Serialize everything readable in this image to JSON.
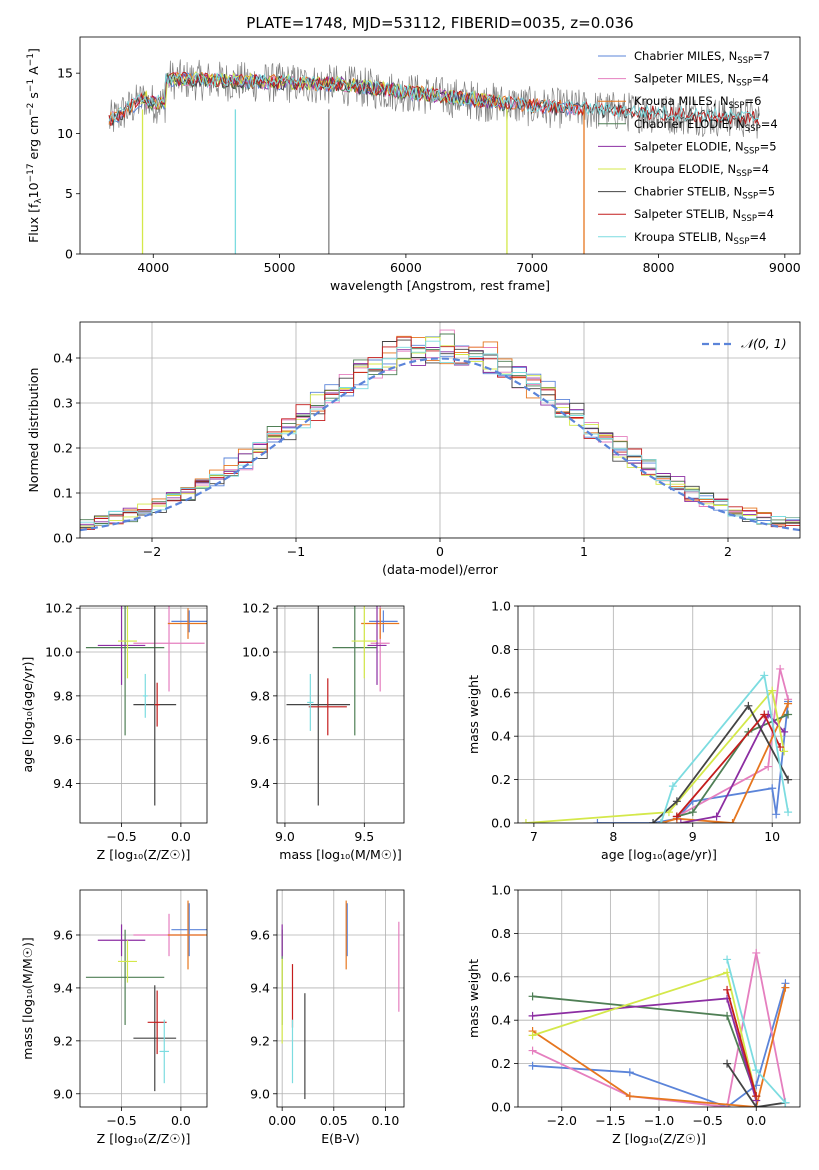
{
  "figure_title": "PLATE=1748, MJD=53112, FIBERID=0035, z=0.036",
  "colors": {
    "chabrier_miles": "#5b84d9",
    "salpeter_miles": "#e57fbf",
    "kroupa_miles": "#e6761f",
    "chabrier_elodie": "#4f7f55",
    "salpeter_elodie": "#8c2ea2",
    "kroupa_elodie": "#d4e84a",
    "chabrier_stelib": "#444444",
    "salpeter_stelib": "#c41d1d",
    "kroupa_stelib": "#7cdce0",
    "data_gray": "#808080",
    "gaussian": "#5b84d9"
  },
  "legend_entries": [
    "Chabrier MILES, N_SSP=7",
    "Salpeter MILES, N_SSP=4",
    "Kroupa MILES, N_SSP=6",
    "Chabrier ELODIE, N_SSP=4",
    "Salpeter ELODIE, N_SSP=5",
    "Kroupa ELODIE, N_SSP=4",
    "Chabrier STELIB, N_SSP=5",
    "Salpeter STELIB, N_SSP=4",
    "Kroupa STELIB, N_SSP=4"
  ],
  "chart_data": [
    {
      "id": "spectrum",
      "type": "line",
      "title": "PLATE=1748, MJD=53112, FIBERID=0035, z=0.036",
      "xlabel": "wavelength [Angstrom, rest frame]",
      "ylabel": "Flux [f_λ 10^-17 erg cm^-2 s^-1 A^-1]",
      "xlim": [
        3420,
        9120
      ],
      "ylim": [
        0,
        18
      ],
      "xticks": [
        4000,
        5000,
        6000,
        7000,
        8000,
        9000
      ],
      "yticks": [
        0,
        5,
        10,
        15
      ],
      "grid": false,
      "legend_position": "top-right",
      "series": [
        {
          "name": "Chabrier MILES, N_SSP=7",
          "x": [
            3650,
            7400
          ],
          "y_approx": "model spectrum ~11-15"
        },
        {
          "name": "Salpeter MILES, N_SSP=4",
          "x": [
            3650,
            7400
          ]
        },
        {
          "name": "Kroupa MILES, N_SSP=6",
          "x": [
            3650,
            7420
          ]
        },
        {
          "name": "Chabrier ELODIE, N_SSP=4",
          "x": [
            3900,
            6800
          ]
        },
        {
          "name": "Salpeter ELODIE, N_SSP=5",
          "x": [
            3900,
            6800
          ]
        },
        {
          "name": "Kroupa ELODIE, N_SSP=4",
          "x": [
            3900,
            6800
          ]
        },
        {
          "name": "Chabrier STELIB, N_SSP=5",
          "x": [
            3650,
            8800
          ]
        },
        {
          "name": "Salpeter STELIB, N_SSP=4",
          "x": [
            3650,
            8800
          ]
        },
        {
          "name": "Kroupa STELIB, N_SSP=4",
          "x": [
            3650,
            8800
          ]
        }
      ]
    },
    {
      "id": "residuals",
      "type": "line",
      "xlabel": "(data-model)/error",
      "ylabel": "Normed distribution",
      "xlim": [
        -2.5,
        2.5
      ],
      "ylim": [
        0,
        0.48
      ],
      "xticks": [
        -2,
        -1,
        0,
        1,
        2
      ],
      "yticks": [
        0.0,
        0.1,
        0.2,
        0.3,
        0.4
      ],
      "grid": true,
      "legend_position": "top-right",
      "legend": "N(0,1)",
      "gaussian": {
        "mean": 0,
        "sigma": 1
      },
      "bin_width": 0.1
    },
    {
      "id": "z_age",
      "type": "scatter",
      "xlabel": "Z [log10(Z/Z_sun)]",
      "ylabel": "age [log10(age/yr)]",
      "xlim": [
        -0.85,
        0.22
      ],
      "ylim": [
        9.22,
        10.21
      ],
      "xticks": [
        -0.5,
        0.0
      ],
      "yticks": [
        9.4,
        9.6,
        9.8,
        10.0,
        10.2
      ],
      "grid": true,
      "points": [
        {
          "series": "Chabrier MILES",
          "x": 0.07,
          "y": 10.14,
          "xerr": 0.15,
          "yerr": 0.05
        },
        {
          "series": "Salpeter MILES",
          "x": -0.1,
          "y": 10.04,
          "xerr": 0.3,
          "yerr": 0.22
        },
        {
          "series": "Kroupa MILES",
          "x": 0.06,
          "y": 10.13,
          "xerr": 0.17,
          "yerr": 0.07
        },
        {
          "series": "Chabrier ELODIE",
          "x": -0.47,
          "y": 10.02,
          "xerr": 0.33,
          "yerr": 0.4
        },
        {
          "series": "Salpeter ELODIE",
          "x": -0.5,
          "y": 10.03,
          "xerr": 0.2,
          "yerr": 0.18
        },
        {
          "series": "Kroupa ELODIE",
          "x": -0.45,
          "y": 10.05,
          "xerr": 0.08,
          "yerr": 0.17
        },
        {
          "series": "Chabrier STELIB",
          "x": -0.22,
          "y": 9.76,
          "xerr": 0.18,
          "yerr": 0.46
        },
        {
          "series": "Salpeter STELIB",
          "x": -0.2,
          "y": 9.76,
          "xerr": 0.02,
          "yerr": 0.1
        },
        {
          "series": "Kroupa STELIB",
          "x": -0.3,
          "y": 9.8,
          "xerr": 0.02,
          "yerr": 0.1
        }
      ]
    },
    {
      "id": "mass_age",
      "type": "scatter",
      "xlabel": "mass [log10(M/M_sun)]",
      "ylabel": "",
      "xlim": [
        8.95,
        9.75
      ],
      "ylim": [
        9.22,
        10.21
      ],
      "xticks": [
        9.0,
        9.5
      ],
      "yticks": [
        9.4,
        9.6,
        9.8,
        10.0,
        10.2
      ],
      "grid": true,
      "points": [
        {
          "series": "Chabrier MILES",
          "x": 9.62,
          "y": 10.14,
          "xerr": 0.09,
          "yerr": 0.05
        },
        {
          "series": "Salpeter MILES",
          "x": 9.6,
          "y": 10.04,
          "xerr": 0.06,
          "yerr": 0.22
        },
        {
          "series": "Kroupa MILES",
          "x": 9.6,
          "y": 10.13,
          "xerr": 0.12,
          "yerr": 0.07
        },
        {
          "series": "Chabrier ELODIE",
          "x": 9.44,
          "y": 10.02,
          "xerr": 0.14,
          "yerr": 0.4
        },
        {
          "series": "Salpeter ELODIE",
          "x": 9.58,
          "y": 10.03,
          "xerr": 0.06,
          "yerr": 0.18
        },
        {
          "series": "Kroupa ELODIE",
          "x": 9.5,
          "y": 10.05,
          "xerr": 0.08,
          "yerr": 0.17
        },
        {
          "series": "Chabrier STELIB",
          "x": 9.21,
          "y": 9.76,
          "xerr": 0.2,
          "yerr": 0.46
        },
        {
          "series": "Salpeter STELIB",
          "x": 9.27,
          "y": 9.75,
          "xerr": 0.12,
          "yerr": 0.13
        },
        {
          "series": "Kroupa STELIB",
          "x": 9.16,
          "y": 9.77,
          "xerr": 0.02,
          "yerr": 0.13
        }
      ]
    },
    {
      "id": "age_weight",
      "type": "line",
      "xlabel": "age [log10(age/yr)]",
      "ylabel": "mass weight",
      "xlim": [
        6.8,
        10.35
      ],
      "ylim": [
        0,
        1.0
      ],
      "xticks": [
        7,
        8,
        9,
        10
      ],
      "yticks": [
        0.0,
        0.2,
        0.4,
        0.6,
        0.8,
        1.0
      ],
      "grid": true,
      "series": [
        {
          "name": "Chabrier MILES",
          "x": [
            7.8,
            8.5,
            8.8,
            9.0,
            10.0,
            10.05,
            10.2
          ],
          "y": [
            0.0,
            0.0,
            0.02,
            0.1,
            0.16,
            0.04,
            0.56
          ]
        },
        {
          "name": "Salpeter MILES",
          "x": [
            8.8,
            9.95,
            10.1,
            10.2
          ],
          "y": [
            0.03,
            0.26,
            0.71,
            0.57
          ]
        },
        {
          "name": "Kroupa MILES",
          "x": [
            8.6,
            8.8,
            9.5,
            10.2
          ],
          "y": [
            0.0,
            0.02,
            0.0,
            0.55
          ]
        },
        {
          "name": "Chabrier ELODIE",
          "x": [
            8.8,
            9.0,
            9.7,
            10.2
          ],
          "y": [
            0.03,
            0.05,
            0.42,
            0.5
          ]
        },
        {
          "name": "Salpeter ELODIE",
          "x": [
            8.85,
            9.3,
            9.95,
            10.15
          ],
          "y": [
            0.0,
            0.03,
            0.5,
            0.42
          ]
        },
        {
          "name": "Kroupa ELODIE",
          "x": [
            6.9,
            8.7,
            10.0,
            10.15
          ],
          "y": [
            0.0,
            0.05,
            0.61,
            0.33
          ]
        },
        {
          "name": "Chabrier STELIB",
          "x": [
            8.5,
            8.8,
            9.7,
            10.2
          ],
          "y": [
            0.0,
            0.1,
            0.54,
            0.2
          ]
        },
        {
          "name": "Salpeter STELIB",
          "x": [
            8.8,
            9.9,
            10.1
          ],
          "y": [
            0.03,
            0.5,
            0.35
          ]
        },
        {
          "name": "Kroupa STELIB",
          "x": [
            8.6,
            8.75,
            9.9,
            10.2
          ],
          "y": [
            0.0,
            0.17,
            0.68,
            0.05
          ]
        }
      ]
    },
    {
      "id": "z_mass",
      "type": "scatter",
      "xlabel": "Z [log10(Z/Z_sun)]",
      "ylabel": "mass [log10(M/M_sun)]",
      "xlim": [
        -0.85,
        0.22
      ],
      "ylim": [
        8.95,
        9.77
      ],
      "xticks": [
        -0.5,
        0.0
      ],
      "yticks": [
        9.0,
        9.2,
        9.4,
        9.6
      ],
      "grid": true,
      "points": [
        {
          "series": "Chabrier MILES",
          "x": 0.07,
          "y": 9.62,
          "xerr": 0.15,
          "yerr": 0.1
        },
        {
          "series": "Salpeter MILES",
          "x": -0.1,
          "y": 9.6,
          "xerr": 0.3,
          "yerr": 0.08
        },
        {
          "series": "Kroupa MILES",
          "x": 0.06,
          "y": 9.6,
          "xerr": 0.17,
          "yerr": 0.13
        },
        {
          "series": "Chabrier ELODIE",
          "x": -0.47,
          "y": 9.44,
          "xerr": 0.33,
          "yerr": 0.18
        },
        {
          "series": "Salpeter ELODIE",
          "x": -0.5,
          "y": 9.58,
          "xerr": 0.2,
          "yerr": 0.06
        },
        {
          "series": "Kroupa ELODIE",
          "x": -0.45,
          "y": 9.5,
          "xerr": 0.08,
          "yerr": 0.08
        },
        {
          "series": "Chabrier STELIB",
          "x": -0.22,
          "y": 9.21,
          "xerr": 0.18,
          "yerr": 0.2
        },
        {
          "series": "Salpeter STELIB",
          "x": -0.2,
          "y": 9.27,
          "xerr": 0.08,
          "yerr": 0.12
        },
        {
          "series": "Kroupa STELIB",
          "x": -0.14,
          "y": 9.16,
          "xerr": 0.04,
          "yerr": 0.12
        }
      ]
    },
    {
      "id": "ebv_mass",
      "type": "scatter",
      "xlabel": "E(B-V)",
      "ylabel": "",
      "xlim": [
        -0.005,
        0.118
      ],
      "ylim": [
        8.95,
        9.77
      ],
      "xticks": [
        0.0,
        0.05,
        0.1
      ],
      "yticks": [
        9.0,
        9.2,
        9.4,
        9.6
      ],
      "grid": true,
      "points": [
        {
          "series": "Chabrier MILES",
          "x": 0.063,
          "y": 9.62,
          "yerr": 0.1
        },
        {
          "series": "Salpeter MILES",
          "x": 0.113,
          "y": 9.48,
          "yerr": 0.17
        },
        {
          "series": "Kroupa MILES",
          "x": 0.062,
          "y": 9.6,
          "yerr": 0.13
        },
        {
          "series": "Chabrier ELODIE",
          "x": 0.0,
          "y": 9.44,
          "yerr": 0.18
        },
        {
          "series": "Salpeter ELODIE",
          "x": 0.0,
          "y": 9.58,
          "yerr": 0.06
        },
        {
          "series": "Kroupa ELODIE",
          "x": 0.0,
          "y": 9.35,
          "yerr": 0.16
        },
        {
          "series": "Chabrier STELIB",
          "x": 0.022,
          "y": 9.18,
          "yerr": 0.2
        },
        {
          "series": "Salpeter STELIB",
          "x": 0.01,
          "y": 9.37,
          "yerr": 0.12
        },
        {
          "series": "Kroupa STELIB",
          "x": 0.01,
          "y": 9.16,
          "yerr": 0.12
        }
      ]
    },
    {
      "id": "z_weight",
      "type": "line",
      "xlabel": "Z [log10(Z/Z_sun)]",
      "ylabel": "mass weight",
      "xlim": [
        -2.45,
        0.45
      ],
      "ylim": [
        0,
        1.0
      ],
      "xticks": [
        -2.0,
        -1.5,
        -1.0,
        -0.5,
        0.0
      ],
      "yticks": [
        0.0,
        0.2,
        0.4,
        0.6,
        0.8,
        1.0
      ],
      "grid": true,
      "series": [
        {
          "name": "Chabrier MILES",
          "x": [
            -2.3,
            -1.3,
            -0.3,
            0.0,
            0.3
          ],
          "y": [
            0.19,
            0.16,
            0.0,
            0.1,
            0.57
          ]
        },
        {
          "name": "Salpeter MILES",
          "x": [
            -2.3,
            -1.3,
            -0.3,
            0.0,
            0.3
          ],
          "y": [
            0.26,
            0.05,
            0.0,
            0.71,
            0.02
          ]
        },
        {
          "name": "Kroupa MILES",
          "x": [
            -2.3,
            -1.3,
            0.0,
            0.3
          ],
          "y": [
            0.35,
            0.05,
            0.0,
            0.55
          ]
        },
        {
          "name": "Chabrier ELODIE",
          "x": [
            -2.3,
            -0.3,
            0.0
          ],
          "y": [
            0.51,
            0.42,
            0.05
          ]
        },
        {
          "name": "Salpeter ELODIE",
          "x": [
            -2.3,
            -0.3,
            0.0
          ],
          "y": [
            0.42,
            0.5,
            0.03
          ]
        },
        {
          "name": "Kroupa ELODIE",
          "x": [
            -2.3,
            -0.3,
            0.0
          ],
          "y": [
            0.33,
            0.62,
            0.05
          ]
        },
        {
          "name": "Chabrier STELIB",
          "x": [
            -0.3,
            0.0,
            0.3
          ],
          "y": [
            0.2,
            0.0,
            0.02
          ]
        },
        {
          "name": "Salpeter STELIB",
          "x": [
            -0.3,
            0.0
          ],
          "y": [
            0.54,
            0.05
          ]
        },
        {
          "name": "Kroupa STELIB",
          "x": [
            -0.3,
            0.0,
            0.3
          ],
          "y": [
            0.68,
            0.17,
            0.02
          ]
        }
      ]
    }
  ]
}
